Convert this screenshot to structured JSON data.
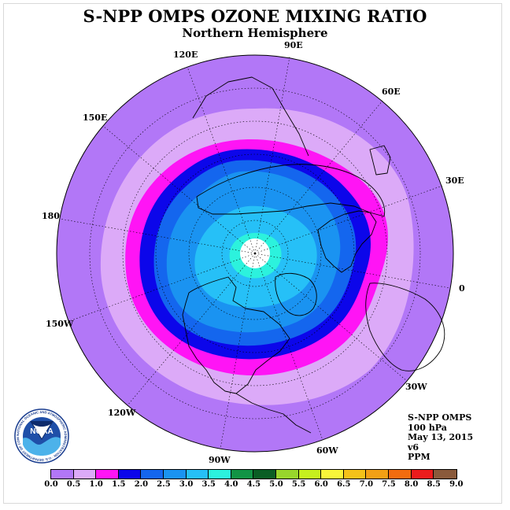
{
  "title": "S-NPP OMPS OZONE MIXING RATIO",
  "subtitle": "Northern Hemisphere",
  "longitude_labels": [
    "90E",
    "60E",
    "30E",
    "0",
    "30W",
    "60W",
    "90W",
    "120W",
    "150W",
    "180",
    "150E",
    "120E"
  ],
  "info": {
    "line1": "S-NPP OMPS",
    "line2": "100 hPa",
    "line3": "May 13, 2015",
    "line4": "v6",
    "line5": "PPM"
  },
  "colorbar": {
    "ticks": [
      "0.0",
      "0.5",
      "1.0",
      "1.5",
      "2.0",
      "2.5",
      "3.0",
      "3.5",
      "4.0",
      "4.5",
      "5.0",
      "5.5",
      "6.0",
      "6.5",
      "7.0",
      "7.5",
      "8.0",
      "8.5",
      "9.0"
    ],
    "colors": [
      "#b277f7",
      "#dcaaf8",
      "#ff14f5",
      "#0c06ea",
      "#1466ee",
      "#1a93f1",
      "#26c0f7",
      "#2cf2dd",
      "#129445",
      "#0a5e24",
      "#98d62c",
      "#c6f01e",
      "#f8f53a",
      "#f4c219",
      "#f2a015",
      "#f26c10",
      "#ec1c1c",
      "#8a5a3b"
    ]
  },
  "logo": {
    "text": "NOAA",
    "ring_text": "NATIONAL OCEANIC AND ATMOSPHERIC ADMINISTRATION · U.S. DEPARTMENT OF COMMERCE"
  },
  "map": {
    "projection": "polar stereographic",
    "hemisphere": "north",
    "contour_bands": [
      {
        "range": "0.0-0.5",
        "color": "#b277f7"
      },
      {
        "range": "0.5-1.0",
        "color": "#dcaaf8"
      },
      {
        "range": "1.0-1.5",
        "color": "#ff14f5"
      },
      {
        "range": "1.5-2.0",
        "color": "#0c06ea"
      },
      {
        "range": "2.0-2.5",
        "color": "#1466ee"
      },
      {
        "range": "2.5-3.0",
        "color": "#1a93f1"
      },
      {
        "range": "3.0-3.5",
        "color": "#26c0f7"
      },
      {
        "range": "3.5-4.0",
        "color": "#2cf2dd"
      }
    ],
    "missing_data_color": "#ffffff"
  }
}
